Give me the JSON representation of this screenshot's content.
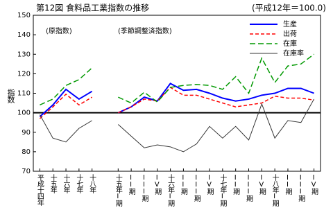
{
  "chart_data": {
    "type": "line",
    "title": "第12図 食料品工業指数の推移",
    "subtitle": "(平成12年＝100.0)",
    "y_label": "指数",
    "annotations": [
      "(原指数)",
      "(季節調整済指数)"
    ],
    "categories": [
      "平成十四年",
      "十五年",
      "十六年",
      "十七年",
      "十八年",
      null,
      "十五年I期",
      "II期",
      "III期",
      "IV期",
      "十六年I期",
      "II期",
      "III期",
      "IV期",
      "十七年I期",
      "II期",
      "III期",
      "IV期",
      "十八年I期",
      "II期",
      "III期",
      "IV期"
    ],
    "series": [
      {
        "name": "生産",
        "color": "#0000ff",
        "dash": "none",
        "width": 2,
        "values": [
          98,
          104,
          112,
          107,
          111,
          null,
          100,
          103,
          108,
          106,
          115,
          111.5,
          112,
          110,
          107.5,
          106,
          107,
          109,
          110,
          112.5,
          112.5,
          110
        ]
      },
      {
        "name": "出荷",
        "color": "#ff0000",
        "dash": "5 3",
        "width": 1.5,
        "values": [
          97,
          103,
          109.5,
          104,
          108,
          null,
          100,
          103,
          107,
          106,
          113,
          109,
          109,
          107,
          105,
          103,
          104,
          105,
          108.5,
          107.5,
          107.5,
          106.5
        ]
      },
      {
        "name": "在庫",
        "color": "#009900",
        "dash": "8 4",
        "width": 1.5,
        "values": [
          104,
          107,
          114,
          117,
          123,
          null,
          108,
          105,
          110.5,
          105.5,
          113,
          114,
          114.5,
          114,
          112,
          118.5,
          110,
          128,
          115.5,
          124,
          125,
          130
        ]
      },
      {
        "name": "在庫率",
        "color": "#333333",
        "dash": "none",
        "width": 1,
        "values": [
          99,
          87,
          85,
          92,
          96,
          null,
          94,
          88,
          82,
          83.5,
          82.5,
          80,
          84,
          93,
          87,
          93,
          86,
          104.5,
          87,
          96,
          95,
          107
        ]
      }
    ],
    "ylim": [
      70,
      150
    ],
    "yticks": [
      70,
      80,
      90,
      100,
      110,
      120,
      130,
      140,
      150
    ],
    "reference_line": 100,
    "grid": false,
    "legend": "top-right"
  }
}
